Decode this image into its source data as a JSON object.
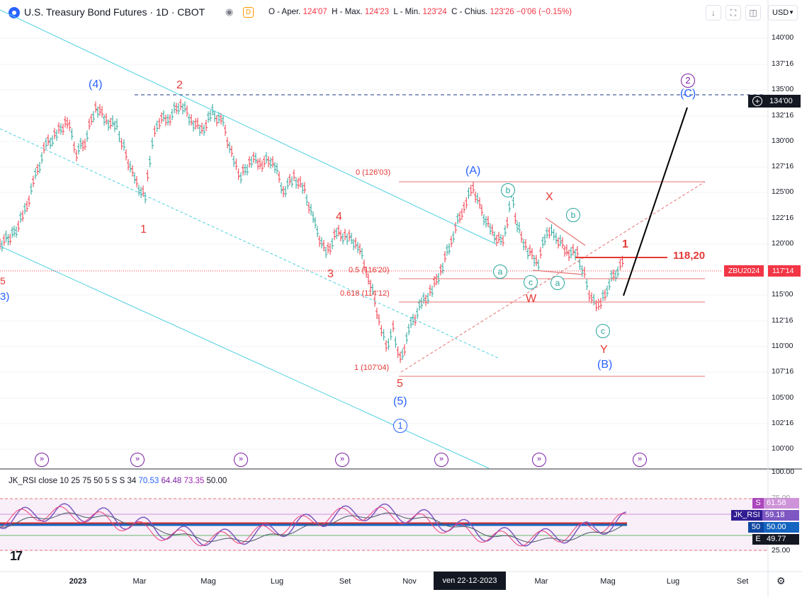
{
  "header": {
    "title": "U.S. Treasury Bond Futures · 1D · CBOT",
    "eye_icon": "eye-icon",
    "delay_badge": "D",
    "ohlc": {
      "open_label": "O - Aper.",
      "open": "124'07",
      "high_label": "H - Max.",
      "high": "124'23",
      "low_label": "L - Min.",
      "low": "123'24",
      "close_label": "C - Chius.",
      "close": "123'26",
      "change": "−0'06 (−0.15%)"
    },
    "buttons": [
      "arrow-down-icon",
      "fullscreen-icon",
      "screenshot-icon"
    ],
    "currency": "USD"
  },
  "price_axis": {
    "labels": [
      "140'00",
      "137'16",
      "135'00",
      "132'16",
      "130'00",
      "127'16",
      "125'00",
      "122'16",
      "120'00",
      "115'00",
      "112'16",
      "110'00",
      "107'16",
      "105'00",
      "102'16",
      "100'00"
    ],
    "target_marker": "134'00",
    "symbol_tag": "ZBU2024",
    "last_price": "117'14"
  },
  "time_axis": {
    "labels": [
      "2023",
      "Mar",
      "Mag",
      "Lug",
      "Set",
      "Nov",
      "Mar",
      "Mag",
      "Lug",
      "Set"
    ],
    "crosshair_date": "ven 22-12-2023"
  },
  "annotations": {
    "wave_4_major": "(4)",
    "wave_2_red": "2",
    "wave_1_red": "1",
    "wave_3_red": "3",
    "wave_4_red": "4",
    "wave_5_red": "5",
    "wave_5_major": "(5)",
    "wave_circle_1": "1",
    "wave_A": "(A)",
    "wave_B": "(B)",
    "wave_C": "(C)",
    "wave_circle_2": "2",
    "wave_X": "X",
    "wave_W": "W",
    "wave_Y": "Y",
    "wave_1_small": "1",
    "circ_a1": "a",
    "circ_b1": "b",
    "circ_c1": "c",
    "circ_a2": "a",
    "circ_b2": "b",
    "circ_c2": "c",
    "left_edge_5": "5",
    "left_edge_3": "3)",
    "fib_0": "0 (126'03)",
    "fib_05": "0.5 (116'20)",
    "fib_0618": "0.618 (114'12)",
    "fib_1": "1 (107'04)",
    "level_label": "118,20"
  },
  "rsi_panel": {
    "legend_name": "JK_RSI",
    "legend_params": "close 10 25 75 50 5 S S 34",
    "values": [
      "70.53",
      "64.48",
      "73.35",
      "50.00"
    ],
    "axis_labels": [
      "100.00",
      "75.00",
      "25.00"
    ],
    "tags": [
      {
        "key": "S",
        "value": "61.58"
      },
      {
        "key": "JK_RSI",
        "value": "59.18"
      },
      {
        "key": "50",
        "value": "50.00"
      },
      {
        "key": "E",
        "value": "49.77"
      }
    ]
  },
  "colors": {
    "up_candle": "#26a69a",
    "fib": "#e57373",
    "channel": "#4dd0e1",
    "wave_blue": "#2962ff",
    "wave_red": "#e53935",
    "wave_purple": "#7b1fa2",
    "rsi_purple": "#7e57c2"
  }
}
